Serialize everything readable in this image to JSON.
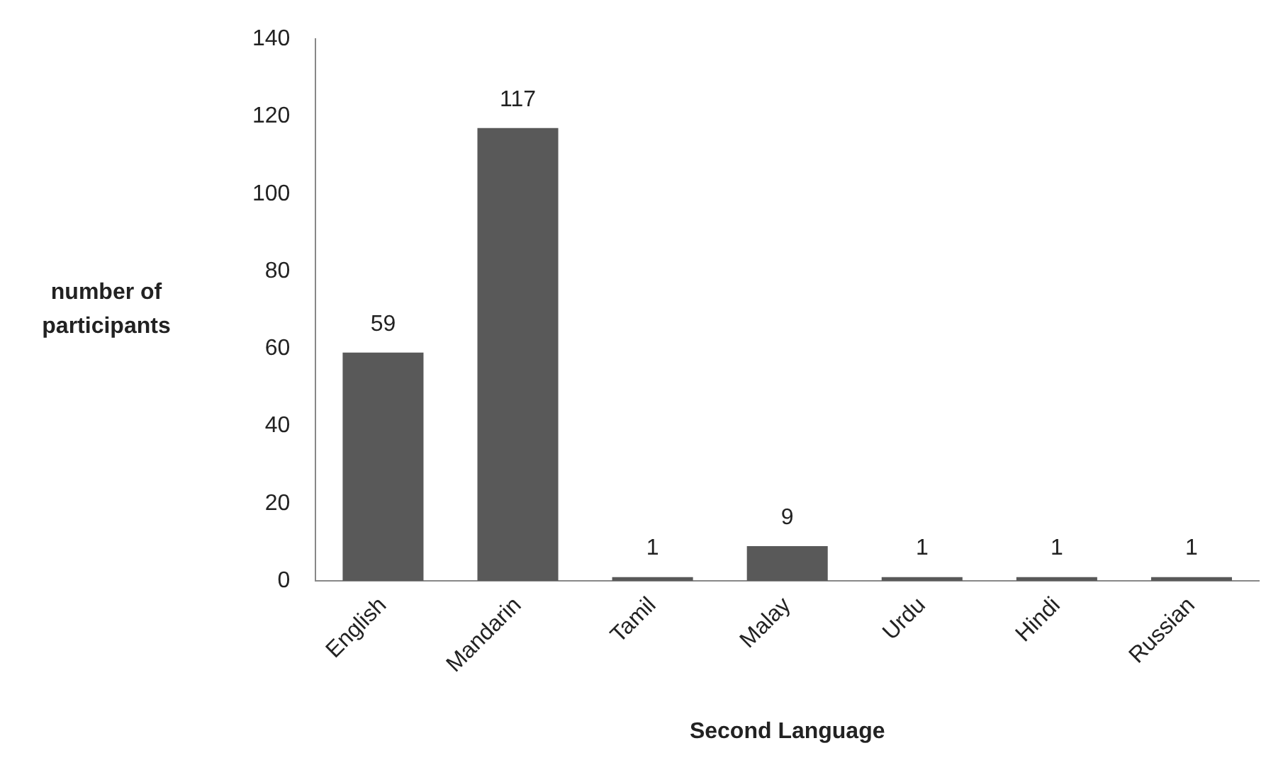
{
  "chart_data": {
    "type": "bar",
    "xlabel": "Second Language",
    "ylabel": "number of participants",
    "categories": [
      "English",
      "Mandarin",
      "Tamil",
      "Malay",
      "Urdu",
      "Hindi",
      "Russian"
    ],
    "values": [
      59,
      117,
      1,
      9,
      1,
      1,
      1
    ],
    "color": "#595959",
    "ylim": [
      0,
      140
    ],
    "yticks": [
      0,
      20,
      40,
      60,
      80,
      100,
      120,
      140
    ],
    "grid": false,
    "legend": false,
    "data_labels": true
  }
}
